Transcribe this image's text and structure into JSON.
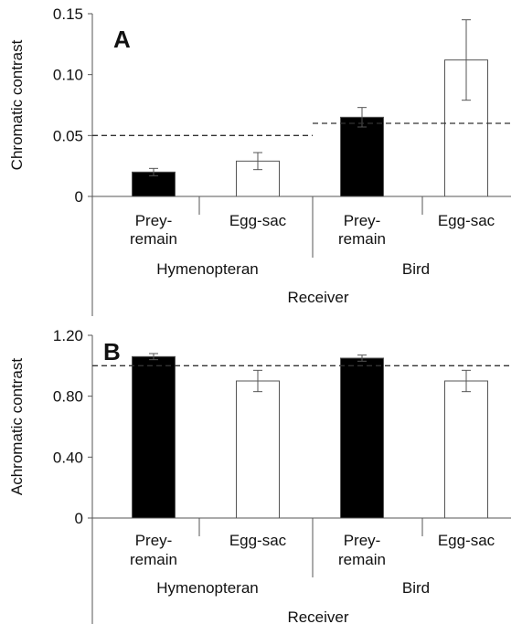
{
  "chart_data": [
    {
      "type": "bar",
      "panel_label": "A",
      "ylabel": "Chromatic contrast",
      "xlabel": "Receiver",
      "ylim": [
        0,
        0.15
      ],
      "yticks": [
        "0",
        "0.05",
        "0.10",
        "0.15"
      ],
      "ytick_values": [
        0,
        0.05,
        0.1,
        0.15
      ],
      "groups": [
        "Hymenopteran",
        "Bird"
      ],
      "categories": [
        {
          "label": [
            "Prey-",
            "remain"
          ],
          "group": "Hymenopteran",
          "value": 0.02,
          "err_low": 0.017,
          "err_high": 0.023,
          "fill": "#000000"
        },
        {
          "label": [
            "Egg-sac"
          ],
          "group": "Hymenopteran",
          "value": 0.029,
          "err_low": 0.022,
          "err_high": 0.036,
          "fill": "#ffffff"
        },
        {
          "label": [
            "Prey-",
            "remain"
          ],
          "group": "Bird",
          "value": 0.065,
          "err_low": 0.057,
          "err_high": 0.073,
          "fill": "#000000"
        },
        {
          "label": [
            "Egg-sac"
          ],
          "group": "Bird",
          "value": 0.112,
          "err_low": 0.079,
          "err_high": 0.145,
          "fill": "#ffffff"
        }
      ],
      "thresholds": [
        {
          "group": "Hymenopteran",
          "value": 0.05
        },
        {
          "group": "Bird",
          "value": 0.06
        }
      ]
    },
    {
      "type": "bar",
      "panel_label": "B",
      "ylabel": "Achromatic contrast",
      "xlabel": "Receiver",
      "ylim": [
        0,
        1.2
      ],
      "yticks": [
        "0",
        "0.40",
        "0.80",
        "1.20"
      ],
      "ytick_values": [
        0,
        0.4,
        0.8,
        1.2
      ],
      "groups": [
        "Hymenopteran",
        "Bird"
      ],
      "categories": [
        {
          "label": [
            "Prey-",
            "remain"
          ],
          "group": "Hymenopteran",
          "value": 1.06,
          "err_low": 1.04,
          "err_high": 1.08,
          "fill": "#000000"
        },
        {
          "label": [
            "Egg-sac"
          ],
          "group": "Hymenopteran",
          "value": 0.9,
          "err_low": 0.83,
          "err_high": 0.97,
          "fill": "#ffffff"
        },
        {
          "label": [
            "Prey-",
            "remain"
          ],
          "group": "Bird",
          "value": 1.05,
          "err_low": 1.03,
          "err_high": 1.07,
          "fill": "#000000"
        },
        {
          "label": [
            "Egg-sac"
          ],
          "group": "Bird",
          "value": 0.9,
          "err_low": 0.83,
          "err_high": 0.97,
          "fill": "#ffffff"
        }
      ],
      "thresholds": [
        {
          "group": "all",
          "value": 1.0
        }
      ]
    }
  ]
}
